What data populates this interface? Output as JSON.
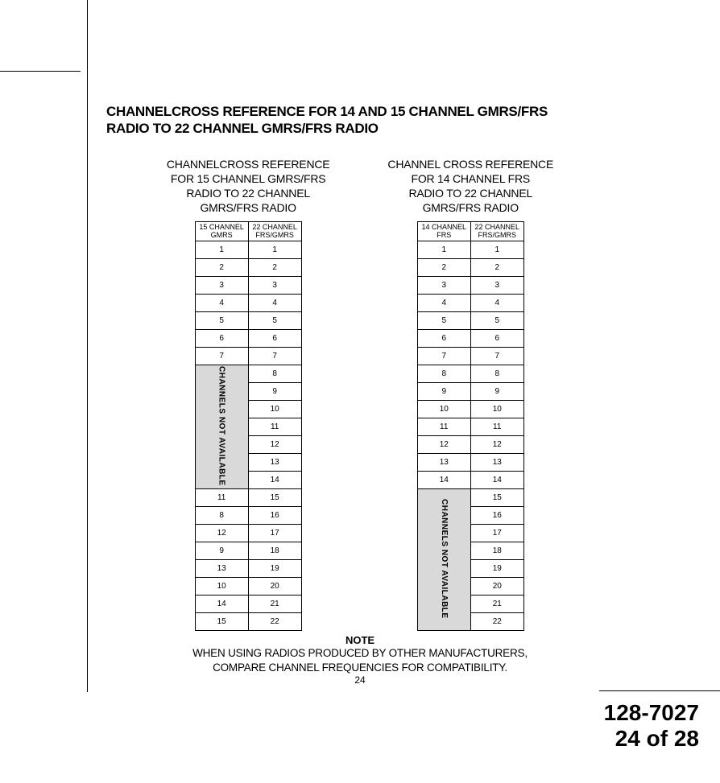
{
  "main_title_line1": "CHANNELCROSS REFERENCE FOR 14 AND 15 CHANNEL GMRS/FRS",
  "main_title_line2": "RADIO TO 22 CHANNEL GMRS/FRS RADIO",
  "left": {
    "title_l1": "CHANNELCROSS REFERENCE",
    "title_l2": "FOR 15 CHANNEL GMRS/FRS",
    "title_l3": "RADIO TO 22 CHANNEL",
    "title_l4": "GMRS/FRS RADIO",
    "col1_header_l1": "15 CHANNEL",
    "col1_header_l2": "GMRS",
    "col2_header_l1": "22 CHANNEL",
    "col2_header_l2": "FRS/GMRS",
    "not_available_label": "CHANNELS  NOT  AVAILABLE",
    "rows_top": [
      {
        "a": "1",
        "b": "1"
      },
      {
        "a": "2",
        "b": "2"
      },
      {
        "a": "3",
        "b": "3"
      },
      {
        "a": "4",
        "b": "4"
      },
      {
        "a": "5",
        "b": "5"
      },
      {
        "a": "6",
        "b": "6"
      },
      {
        "a": "7",
        "b": "7"
      }
    ],
    "na_right": [
      "8",
      "9",
      "10",
      "11",
      "12",
      "13",
      "14"
    ],
    "rows_bottom": [
      {
        "a": "11",
        "b": "15"
      },
      {
        "a": "8",
        "b": "16"
      },
      {
        "a": "12",
        "b": "17"
      },
      {
        "a": "9",
        "b": "18"
      },
      {
        "a": "13",
        "b": "19"
      },
      {
        "a": "10",
        "b": "20"
      },
      {
        "a": "14",
        "b": "21"
      },
      {
        "a": "15",
        "b": "22"
      }
    ]
  },
  "right": {
    "title_l1": "CHANNEL CROSS REFERENCE",
    "title_l2": "FOR 14 CHANNEL FRS",
    "title_l3": "RADIO TO 22 CHANNEL",
    "title_l4": "GMRS/FRS RADIO",
    "col1_header_l1": "14 CHANNEL",
    "col1_header_l2": "FRS",
    "col2_header_l1": "22 CHANNEL",
    "col2_header_l2": "FRS/GMRS",
    "not_available_label": "CHANNELS  NOT  AVAILABLE",
    "rows_top": [
      {
        "a": "1",
        "b": "1"
      },
      {
        "a": "2",
        "b": "2"
      },
      {
        "a": "3",
        "b": "3"
      },
      {
        "a": "4",
        "b": "4"
      },
      {
        "a": "5",
        "b": "5"
      },
      {
        "a": "6",
        "b": "6"
      },
      {
        "a": "7",
        "b": "7"
      },
      {
        "a": "8",
        "b": "8"
      },
      {
        "a": "9",
        "b": "9"
      },
      {
        "a": "10",
        "b": "10"
      },
      {
        "a": "11",
        "b": "11"
      },
      {
        "a": "12",
        "b": "12"
      },
      {
        "a": "13",
        "b": "13"
      },
      {
        "a": "14",
        "b": "14"
      }
    ],
    "na_right": [
      "15",
      "16",
      "17",
      "18",
      "19",
      "20",
      "21",
      "22"
    ]
  },
  "note_label": "NOTE",
  "note_line1": "WHEN USING RADIOS PRODUCED BY OTHER MANUFACTURERS,",
  "note_line2": "COMPARE CHANNEL FREQUENCIES FOR COMPATIBILITY.",
  "page_small": "24",
  "doc_number": "128-7027",
  "doc_page": "24 of 28",
  "colors": {
    "na_bg": "#d9d9d9",
    "rule": "#000000",
    "text": "#000000"
  }
}
